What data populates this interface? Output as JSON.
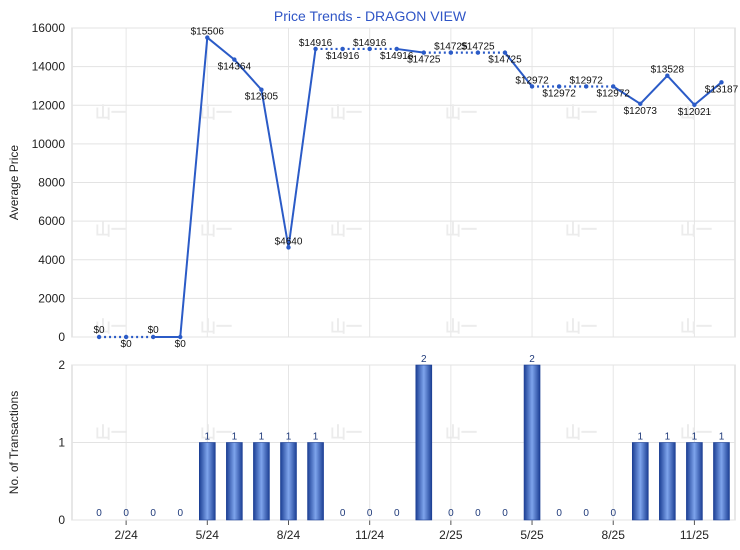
{
  "chart_data": [
    {
      "type": "line",
      "title": "Price Trends - DRAGON VIEW",
      "ylabel": "Average Price",
      "ylim": [
        0,
        16000
      ],
      "yticks": [
        0,
        2000,
        4000,
        6000,
        8000,
        10000,
        12000,
        14000,
        16000
      ],
      "xlim": [
        -1,
        23.5
      ],
      "series": [
        {
          "color": "#2b5bc7",
          "x": [
            0,
            1,
            2,
            3,
            4,
            5,
            6,
            7,
            8,
            9,
            10,
            11,
            12,
            13,
            14,
            15,
            16,
            17,
            18,
            19,
            20,
            21,
            22,
            23
          ],
          "values": [
            0,
            0,
            0,
            0,
            15506,
            14364,
            12805,
            4640,
            14916,
            14916,
            14916,
            14916,
            14725,
            14725,
            14725,
            14725,
            12972,
            12972,
            12972,
            12972,
            12073,
            13528,
            12021,
            13187
          ],
          "labels": [
            "$0",
            "$0",
            "$0",
            "$0",
            "$15506",
            "$14364",
            "$12805",
            "$4640",
            "$14916",
            "$14916",
            "$14916",
            "$14916",
            "$14725",
            "$14725",
            "$14725",
            "$14725",
            "$12972",
            "$12972",
            "$12972",
            "$12972",
            "$12073",
            "$13528",
            "$12021",
            "$13187"
          ],
          "interpolated": [
            false,
            true,
            false,
            false,
            false,
            false,
            false,
            false,
            false,
            true,
            true,
            false,
            false,
            true,
            true,
            false,
            false,
            true,
            true,
            false,
            false,
            false,
            false,
            false
          ]
        }
      ],
      "grid": true
    },
    {
      "type": "bar",
      "ylabel": "No. of Transactions",
      "ylim": [
        0,
        2
      ],
      "yticks": [
        0,
        1,
        2
      ],
      "xlim": [
        -1,
        23.5
      ],
      "x": [
        0,
        1,
        2,
        3,
        4,
        5,
        6,
        7,
        8,
        9,
        10,
        11,
        12,
        13,
        14,
        15,
        16,
        17,
        18,
        19,
        20,
        21,
        22,
        23
      ],
      "values": [
        0,
        0,
        0,
        0,
        1,
        1,
        1,
        1,
        1,
        0,
        0,
        0,
        2,
        0,
        0,
        0,
        2,
        0,
        0,
        0,
        1,
        1,
        1,
        1
      ],
      "xtick_labels": [
        {
          "x": 1.0,
          "label": "2/24"
        },
        {
          "x": 4.0,
          "label": "5/24"
        },
        {
          "x": 7.0,
          "label": "8/24"
        },
        {
          "x": 10.0,
          "label": "11/24"
        },
        {
          "x": 13.0,
          "label": "2/25"
        },
        {
          "x": 16.0,
          "label": "5/25"
        },
        {
          "x": 19.0,
          "label": "8/25"
        },
        {
          "x": 22.0,
          "label": "11/25"
        }
      ],
      "bar_color": "#3f6fd3",
      "grid": true
    }
  ],
  "watermark": "山一"
}
